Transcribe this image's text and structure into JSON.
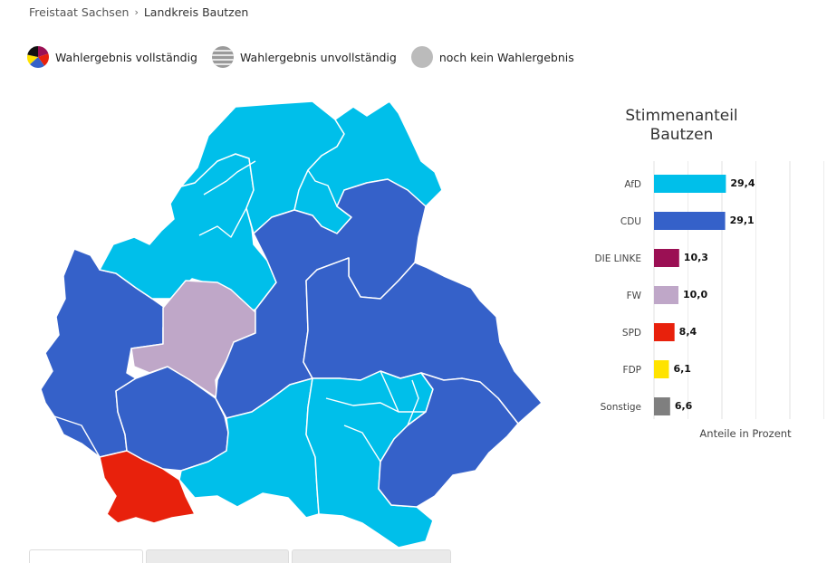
{
  "breadcrumb": {
    "parent": "Freistaat Sachsen",
    "current": "Landkreis Bautzen"
  },
  "legend": {
    "complete": "Wahlergebnis vollständig",
    "incomplete": "Wahlergebnis unvollständig",
    "none": "noch kein Wahlergebnis"
  },
  "colors": {
    "afd": "#00bfea",
    "cdu": "#3561c9",
    "linke": "#9b1054",
    "fw": "#bfa7c8",
    "spd": "#e8210c",
    "fdp": "#ffe300",
    "sonstige": "#7f7f7f",
    "none": "#bbbbbb"
  },
  "map": {
    "regions": [
      {
        "name": "north-west",
        "party": "AfD"
      },
      {
        "name": "north-center",
        "party": "AfD"
      },
      {
        "name": "north-east",
        "party": "AfD"
      },
      {
        "name": "center-north",
        "party": "CDU"
      },
      {
        "name": "east",
        "party": "CDU"
      },
      {
        "name": "west",
        "party": "CDU"
      },
      {
        "name": "west-south",
        "party": "CDU"
      },
      {
        "name": "center",
        "party": "FW"
      },
      {
        "name": "south-west",
        "party": "SPD"
      },
      {
        "name": "south-center",
        "party": "AfD"
      },
      {
        "name": "south",
        "party": "AfD"
      },
      {
        "name": "south-east",
        "party": "CDU"
      }
    ]
  },
  "chart_data": {
    "type": "bar",
    "orientation": "horizontal",
    "title": "Stimmenanteil\nBautzen",
    "title_lines": [
      "Stimmenanteil",
      "Bautzen"
    ],
    "xlabel": "Anteile in Prozent",
    "categories": [
      "AfD",
      "CDU",
      "DIE LINKE",
      "FW",
      "SPD",
      "FDP",
      "Sonstige"
    ],
    "values": [
      29.4,
      29.1,
      10.3,
      10.0,
      8.4,
      6.1,
      6.6
    ],
    "value_labels": [
      "29,4",
      "29,1",
      "10,3",
      "10,0",
      "8,4",
      "6,1",
      "6,6"
    ],
    "bar_colors": [
      "#00bfea",
      "#3561c9",
      "#9b1054",
      "#bfa7c8",
      "#e8210c",
      "#ffe300",
      "#7f7f7f"
    ],
    "xlim": [
      0,
      80
    ],
    "grid": true
  }
}
